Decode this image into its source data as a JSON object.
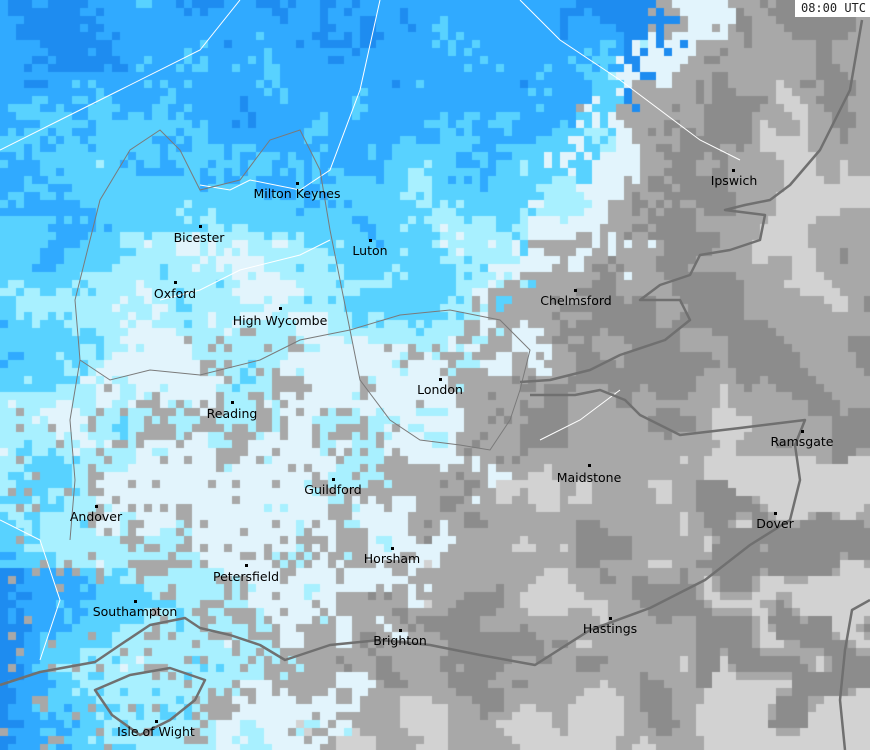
{
  "timestamp": "08:00 UTC",
  "palette": {
    "very_light": "#e2f4fc",
    "light_cyan": "#a8f0ff",
    "cyan": "#58d2ff",
    "blue": "#30aaff",
    "dark_blue": "#1e8cf0",
    "light_grey": "#d2d2d2",
    "grey": "#a8a8a8",
    "dark_grey": "#8c8c8c",
    "coastline": "#707070",
    "boundary": "#ffffff"
  },
  "cities": [
    {
      "name": "Milton Keynes"
    },
    {
      "name": "Bicester"
    },
    {
      "name": "Oxford"
    },
    {
      "name": "High Wycombe"
    },
    {
      "name": "Luton"
    },
    {
      "name": "Ipswich"
    },
    {
      "name": "Chelmsford"
    },
    {
      "name": "London"
    },
    {
      "name": "Reading"
    },
    {
      "name": "Ramsgate"
    },
    {
      "name": "Maidstone"
    },
    {
      "name": "Dover"
    },
    {
      "name": "Guildford"
    },
    {
      "name": "Andover"
    },
    {
      "name": "Horsham"
    },
    {
      "name": "Petersfield"
    },
    {
      "name": "Southampton"
    },
    {
      "name": "Hastings"
    },
    {
      "name": "Brighton"
    },
    {
      "name": "Isle of Wight"
    }
  ]
}
